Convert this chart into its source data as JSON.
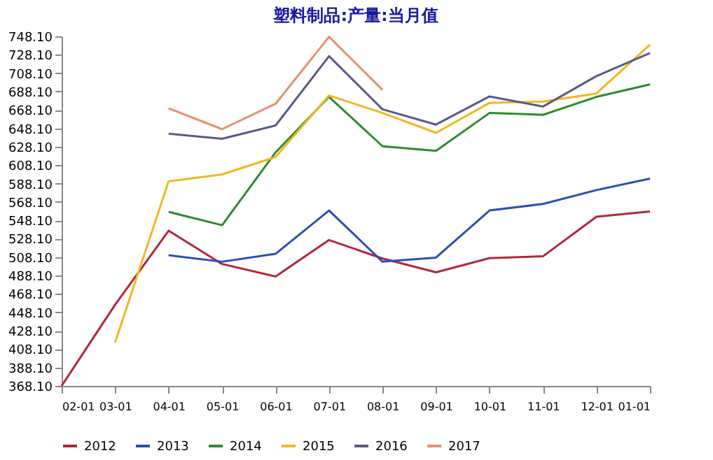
{
  "chart_data": {
    "type": "line",
    "title": "塑料制品:产量:当月值",
    "categories": [
      "02-01",
      "03-01",
      "04-01",
      "05-01",
      "06-01",
      "07-01",
      "08-01",
      "09-01",
      "10-01",
      "11-01",
      "12-01",
      "01-01"
    ],
    "series": [
      {
        "name": "2012",
        "color": "#b0283c",
        "values": [
          368.1,
          456.4,
          536.8,
          500.6,
          487,
          526.7,
          506.6,
          491.6,
          507,
          509,
          552,
          557.8
        ]
      },
      {
        "name": "2013",
        "color": "#2c4fb0",
        "values": [
          null,
          null,
          510.2,
          503.1,
          511.7,
          558.8,
          503.1,
          507.6,
          558.8,
          565.9,
          581,
          593.5
        ]
      },
      {
        "name": "2014",
        "color": "#2e8b2e",
        "values": [
          null,
          null,
          557.3,
          542.8,
          622,
          682.3,
          628.6,
          623.6,
          664.8,
          662.8,
          682.3,
          695.9
        ]
      },
      {
        "name": "2015",
        "color": "#f0b820",
        "values": [
          null,
          415.3,
          590.5,
          598,
          617,
          683.8,
          664.8,
          643.2,
          675.8,
          677.3,
          686,
          739
        ]
      },
      {
        "name": "2016",
        "color": "#5a5a8a",
        "values": [
          null,
          null,
          642.2,
          636.7,
          651.2,
          726.5,
          668.8,
          652.2,
          682.8,
          671.8,
          704.9,
          730
        ]
      },
      {
        "name": "2017",
        "color": "#e8906a",
        "values": [
          null,
          null,
          669.8,
          647.2,
          674.8,
          747.6,
          689.9,
          null,
          null,
          null,
          null,
          null
        ]
      }
    ],
    "ylim": [
      368.1,
      748.1
    ],
    "yticks": [
      {
        "value": 368.1,
        "label": "368.10"
      },
      {
        "value": 388.1,
        "label": "388.10"
      },
      {
        "value": 408.1,
        "label": "408.10"
      },
      {
        "value": 428.1,
        "label": "428.10"
      },
      {
        "value": 448.1,
        "label": "448.10"
      },
      {
        "value": 468.1,
        "label": "468.10"
      },
      {
        "value": 488.1,
        "label": "488.10"
      },
      {
        "value": 508.1,
        "label": "508.10"
      },
      {
        "value": 528.1,
        "label": "528.10"
      },
      {
        "value": 548.1,
        "label": "548.10"
      },
      {
        "value": 568.1,
        "label": "568.10"
      },
      {
        "value": 588.1,
        "label": "588.10"
      },
      {
        "value": 608.1,
        "label": "608.10"
      },
      {
        "value": 628.1,
        "label": "628.10"
      },
      {
        "value": 648.1,
        "label": "648.10"
      },
      {
        "value": 668.1,
        "label": "668.10"
      },
      {
        "value": 688.1,
        "label": "688.10"
      },
      {
        "value": 708.1,
        "label": "708.10"
      },
      {
        "value": 728.1,
        "label": "728.10"
      },
      {
        "value": 748.1,
        "label": "748.10"
      }
    ],
    "legend": "bottom",
    "marker": "none",
    "line_style": "solid"
  }
}
